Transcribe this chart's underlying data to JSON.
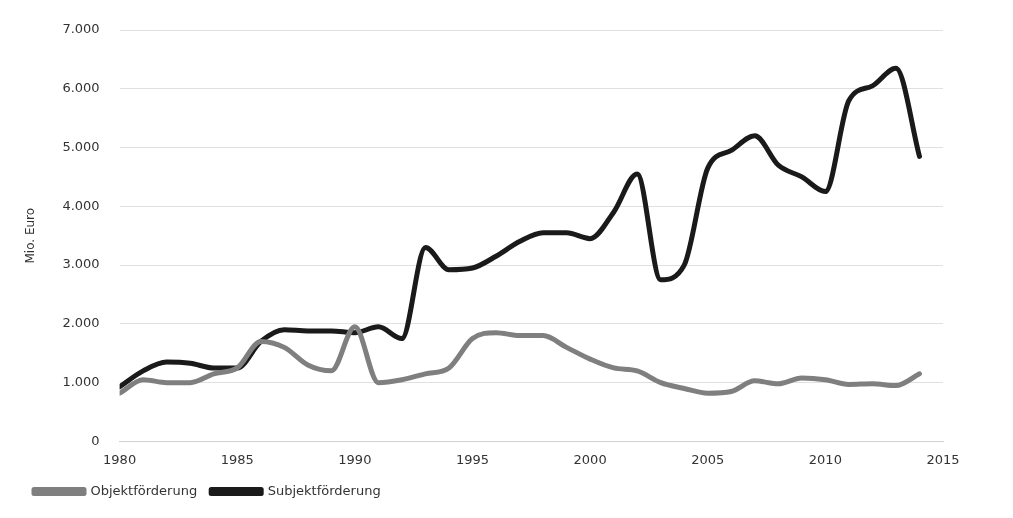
{
  "chart_data": {
    "type": "line",
    "ylabel": "Mio. Euro",
    "x": [
      1980,
      1981,
      1982,
      1983,
      1984,
      1985,
      1986,
      1987,
      1988,
      1989,
      1990,
      1991,
      1992,
      1993,
      1994,
      1995,
      1996,
      1997,
      1998,
      1999,
      2000,
      2001,
      2002,
      2003,
      2004,
      2005,
      2006,
      2007,
      2008,
      2009,
      2010,
      2011,
      2012,
      2013,
      2014
    ],
    "series": [
      {
        "name": "Objektförderung",
        "color": "#7f7f7f",
        "values": [
          820,
          1050,
          1000,
          1000,
          1150,
          1250,
          1700,
          1600,
          1300,
          1200,
          1950,
          1000,
          1050,
          1150,
          1250,
          1750,
          1850,
          1800,
          1800,
          1600,
          1400,
          1250,
          1200,
          1000,
          900,
          820,
          850,
          1030,
          980,
          1080,
          1050,
          970,
          980,
          950,
          1150
        ]
      },
      {
        "name": "Subjektförderung",
        "color": "#1a1a1a",
        "values": [
          930,
          1200,
          1350,
          1330,
          1250,
          1250,
          1700,
          1900,
          1880,
          1880,
          1850,
          1950,
          1750,
          3300,
          2920,
          2950,
          3150,
          3400,
          3550,
          3550,
          3450,
          3900,
          4550,
          2750,
          3000,
          4650,
          4950,
          5200,
          4700,
          4500,
          4250,
          5800,
          6050,
          6350,
          4850
        ]
      }
    ],
    "xlim": [
      1980,
      2015
    ],
    "xticks": [
      1980,
      1985,
      1990,
      1995,
      2000,
      2005,
      2010,
      2015
    ],
    "ylim": [
      0,
      7000
    ],
    "yticks": [
      {
        "value": 0,
        "label": "0"
      },
      {
        "value": 1000,
        "label": "1.000"
      },
      {
        "value": 2000,
        "label": "2.000"
      },
      {
        "value": 3000,
        "label": "3.000"
      },
      {
        "value": 4000,
        "label": "4.000"
      },
      {
        "value": 5000,
        "label": "5.000"
      },
      {
        "value": 6000,
        "label": "6.000"
      },
      {
        "value": 7000,
        "label": "7.000"
      }
    ],
    "grid": "y",
    "legend": "bottom",
    "marker": "none",
    "line_style": "solid"
  }
}
